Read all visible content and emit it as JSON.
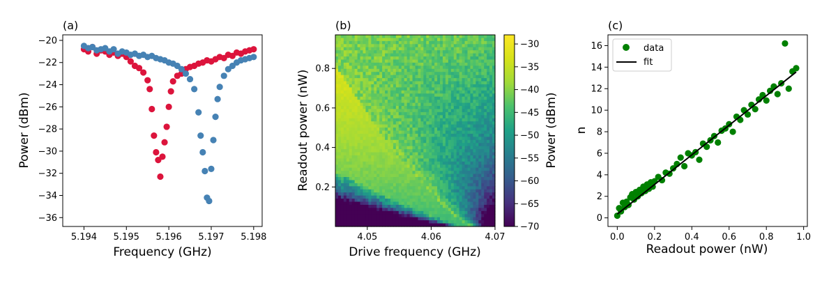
{
  "chart_data": [
    {
      "type": "scatter",
      "panel_label": "(a)",
      "xlabel": "Frequency (GHz)",
      "ylabel": "Power (dBm)",
      "xlim": [
        5.1935,
        5.1982
      ],
      "ylim": [
        -36.8,
        -19.5
      ],
      "xticks": [
        5.194,
        5.195,
        5.196,
        5.197,
        5.198
      ],
      "xtick_labels": [
        "5.194",
        "5.195",
        "5.196",
        "5.197",
        "5.198"
      ],
      "yticks": [
        -36,
        -34,
        -32,
        -30,
        -28,
        -26,
        -24,
        -22,
        -20
      ],
      "ytick_labels": [
        "−36",
        "−34",
        "−32",
        "−30",
        "−28",
        "−26",
        "−24",
        "−22",
        "−20"
      ],
      "series": [
        {
          "color": "#dc143c",
          "x": [
            5.194,
            5.1941,
            5.1942,
            5.1943,
            5.1944,
            5.1945,
            5.1946,
            5.1947,
            5.1948,
            5.1949,
            5.195,
            5.1951,
            5.1952,
            5.1953,
            5.1954,
            5.1955,
            5.19555,
            5.1956,
            5.19565,
            5.1957,
            5.19575,
            5.1958,
            5.19585,
            5.1959,
            5.19595,
            5.196,
            5.19605,
            5.1961,
            5.1962,
            5.1963,
            5.1964,
            5.1965,
            5.1966,
            5.1967,
            5.1968,
            5.1969,
            5.197,
            5.1971,
            5.1972,
            5.1973,
            5.1974,
            5.1975,
            5.1976,
            5.1977,
            5.1978,
            5.1979,
            5.198
          ],
          "y": [
            -20.8,
            -21.0,
            -20.6,
            -21.2,
            -20.9,
            -21.0,
            -21.3,
            -21.1,
            -21.4,
            -21.2,
            -21.5,
            -21.9,
            -22.3,
            -22.5,
            -22.9,
            -23.6,
            -24.4,
            -26.2,
            -28.6,
            -30.1,
            -30.8,
            -32.3,
            -30.5,
            -29.2,
            -27.8,
            -26.0,
            -24.6,
            -23.7,
            -23.2,
            -23.0,
            -22.6,
            -22.4,
            -22.3,
            -22.1,
            -22.0,
            -21.8,
            -21.9,
            -21.7,
            -21.5,
            -21.6,
            -21.3,
            -21.4,
            -21.1,
            -21.2,
            -21.0,
            -20.9,
            -20.8
          ]
        },
        {
          "color": "#4682b4",
          "x": [
            5.194,
            5.1941,
            5.1942,
            5.1943,
            5.1944,
            5.1945,
            5.1946,
            5.1947,
            5.1948,
            5.1949,
            5.195,
            5.1951,
            5.1952,
            5.1953,
            5.1954,
            5.1955,
            5.1956,
            5.1957,
            5.1958,
            5.1959,
            5.196,
            5.1961,
            5.1962,
            5.1963,
            5.1964,
            5.1965,
            5.1966,
            5.1967,
            5.19675,
            5.1968,
            5.19685,
            5.1969,
            5.19695,
            5.197,
            5.19705,
            5.1971,
            5.19715,
            5.1972,
            5.1973,
            5.1974,
            5.1975,
            5.1976,
            5.1977,
            5.1978,
            5.1979,
            5.198
          ],
          "y": [
            -20.5,
            -20.7,
            -20.6,
            -20.9,
            -20.8,
            -20.7,
            -21.0,
            -20.8,
            -21.2,
            -21.0,
            -21.1,
            -21.3,
            -21.2,
            -21.4,
            -21.3,
            -21.5,
            -21.4,
            -21.6,
            -21.7,
            -21.8,
            -22.0,
            -22.1,
            -22.3,
            -22.6,
            -23.0,
            -23.5,
            -24.4,
            -26.5,
            -28.6,
            -30.1,
            -31.8,
            -34.2,
            -34.5,
            -31.6,
            -29.0,
            -26.9,
            -25.3,
            -24.2,
            -23.2,
            -22.6,
            -22.3,
            -22.0,
            -21.8,
            -21.7,
            -21.6,
            -21.5
          ]
        }
      ]
    },
    {
      "type": "heatmap",
      "panel_label": "(b)",
      "xlabel": "Drive frequency (GHz)",
      "ylabel": "Readout power (nW)",
      "xlim": [
        4.045,
        4.07
      ],
      "ylim": [
        0.0,
        0.97
      ],
      "xticks": [
        4.05,
        4.06,
        4.07
      ],
      "xtick_labels": [
        "4.05",
        "4.06",
        "4.07"
      ],
      "yticks": [
        0.2,
        0.4,
        0.6,
        0.8
      ],
      "ytick_labels": [
        "0.2",
        "0.4",
        "0.6",
        "0.8"
      ],
      "colorbar": {
        "label": "Power (dBm)",
        "range": [
          -70,
          -28
        ],
        "colormap": "viridis",
        "ticks": [
          -70,
          -65,
          -60,
          -55,
          -50,
          -45,
          -40,
          -35,
          -30
        ],
        "tick_labels": [
          "−70",
          "−65",
          "−60",
          "−55",
          "−50",
          "−45",
          "−40",
          "−35",
          "−30"
        ]
      }
    },
    {
      "type": "scatter",
      "panel_label": "(c)",
      "xlabel": "Readout power (nW)",
      "ylabel": "n",
      "xlim": [
        -0.05,
        1.02
      ],
      "ylim": [
        -0.8,
        17.0
      ],
      "xticks": [
        0.0,
        0.2,
        0.4,
        0.6,
        0.8,
        1.0
      ],
      "xtick_labels": [
        "0.0",
        "0.2",
        "0.4",
        "0.6",
        "0.8",
        "1.0"
      ],
      "yticks": [
        0,
        2,
        4,
        6,
        8,
        10,
        12,
        14,
        16
      ],
      "ytick_labels": [
        "0",
        "2",
        "4",
        "6",
        "8",
        "10",
        "12",
        "14",
        "16"
      ],
      "legend": {
        "placement": "top-left",
        "data_label": "data",
        "fit_label": "fit"
      },
      "series": [
        {
          "name": "data",
          "color": "#008000",
          "x": [
            0.0,
            0.01,
            0.02,
            0.03,
            0.04,
            0.05,
            0.06,
            0.07,
            0.08,
            0.09,
            0.1,
            0.11,
            0.12,
            0.13,
            0.14,
            0.15,
            0.16,
            0.17,
            0.18,
            0.19,
            0.2,
            0.22,
            0.24,
            0.26,
            0.28,
            0.3,
            0.32,
            0.34,
            0.36,
            0.38,
            0.4,
            0.42,
            0.44,
            0.46,
            0.48,
            0.5,
            0.52,
            0.54,
            0.56,
            0.58,
            0.6,
            0.62,
            0.64,
            0.66,
            0.68,
            0.7,
            0.72,
            0.74,
            0.76,
            0.78,
            0.8,
            0.82,
            0.84,
            0.86,
            0.88,
            0.9,
            0.92,
            0.94,
            0.96
          ],
          "y": [
            0.2,
            0.9,
            0.6,
            1.4,
            1.0,
            1.5,
            1.2,
            1.9,
            2.2,
            1.7,
            2.4,
            2.0,
            2.6,
            2.3,
            2.9,
            2.5,
            3.1,
            2.7,
            3.3,
            2.9,
            3.4,
            3.8,
            3.5,
            4.2,
            4.1,
            4.6,
            5.0,
            5.6,
            4.8,
            6.0,
            5.8,
            6.1,
            5.4,
            6.9,
            6.6,
            7.2,
            7.6,
            7.0,
            8.1,
            8.3,
            8.7,
            8.0,
            9.4,
            9.1,
            10.0,
            9.6,
            10.5,
            10.1,
            11.0,
            11.4,
            10.9,
            11.8,
            12.2,
            11.5,
            12.5,
            16.2,
            12.0,
            13.6,
            13.9
          ]
        },
        {
          "name": "fit",
          "color": "#000000",
          "x": [
            0.0,
            0.96
          ],
          "y": [
            0.35,
            13.55
          ]
        }
      ]
    }
  ]
}
